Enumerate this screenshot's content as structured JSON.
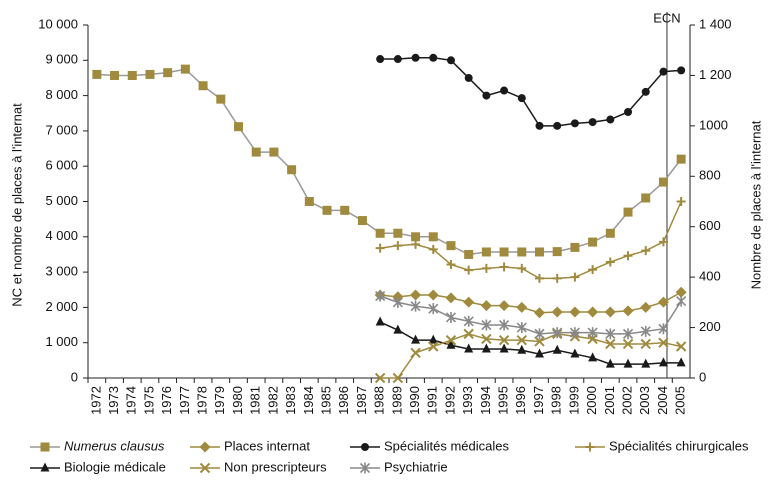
{
  "chart_data": {
    "type": "line",
    "ylabel": "NC et nombre de places à l'internat",
    "y2label": "Nombre de places à l'internat",
    "annotation": "ECN",
    "categories": [
      "1972",
      "1973",
      "1974",
      "1975",
      "1976",
      "1977",
      "1978",
      "1979",
      "1980",
      "1981",
      "1982",
      "1983",
      "1984",
      "1985",
      "1986",
      "1987",
      "1988",
      "1989",
      "1990",
      "1991",
      "1992",
      "1993",
      "1994",
      "1995",
      "1996",
      "1997",
      "1998",
      "1999",
      "2000",
      "2001",
      "2002",
      "2003",
      "2004",
      "2005"
    ],
    "ylim": [
      0,
      10000
    ],
    "yticks": [
      0,
      {
        "value": 1000,
        "label": "1 000"
      },
      {
        "value": 2000,
        "label": "2 000"
      },
      {
        "value": 3000,
        "label": "3 000"
      },
      {
        "value": 4000,
        "label": "4 000"
      },
      {
        "value": 5000,
        "label": "5 000"
      },
      {
        "value": 6000,
        "label": "6 000"
      },
      {
        "value": 7000,
        "label": "7 000"
      },
      {
        "value": 8000,
        "label": "8 000"
      },
      {
        "value": 9000,
        "label": "9 000"
      },
      {
        "value": 10000,
        "label": "10 000"
      }
    ],
    "y2lim": [
      0,
      1400
    ],
    "y2ticks": [
      0,
      200,
      400,
      600,
      800,
      1000,
      {
        "value": 1200,
        "label": "1 200"
      },
      {
        "value": 1400,
        "label": "1 400"
      }
    ],
    "series": [
      {
        "name": "Numerus clausus",
        "color": "#9f8a3e",
        "marker": "square",
        "axis": "y",
        "values": [
          8600,
          8570,
          8570,
          8600,
          8650,
          8750,
          8280,
          7900,
          7120,
          6400,
          6400,
          5900,
          5000,
          4750,
          4750,
          4460,
          4100,
          4100,
          4000,
          4000,
          3750,
          3500,
          3570,
          3570,
          3570,
          3570,
          3580,
          3700,
          3850,
          4100,
          4700,
          5100,
          5550,
          6200
        ]
      },
      {
        "name": "Places internat",
        "color": "#9f8a3e",
        "marker": "diamond",
        "axis": "y",
        "values": [
          null,
          null,
          null,
          null,
          null,
          null,
          null,
          null,
          null,
          null,
          null,
          null,
          null,
          null,
          null,
          null,
          2350,
          2300,
          2350,
          2350,
          2270,
          2150,
          2050,
          2050,
          2000,
          1850,
          1870,
          1870,
          1870,
          1870,
          1900,
          2000,
          2150,
          2430
        ]
      },
      {
        "name": "Spécialités médicales",
        "color": "#1a1a1a",
        "marker": "circle",
        "axis": "y2",
        "values": [
          null,
          null,
          null,
          null,
          null,
          null,
          null,
          null,
          null,
          null,
          null,
          null,
          null,
          null,
          null,
          null,
          1265,
          1265,
          1270,
          1270,
          1260,
          1190,
          1120,
          1140,
          1110,
          1000,
          1000,
          1010,
          1015,
          1025,
          1055,
          1135,
          1215,
          1220
        ]
      },
      {
        "name": "Spécialités chirurgicales",
        "color": "#9f8a3e",
        "marker": "plus",
        "axis": "y2",
        "values": [
          null,
          null,
          null,
          null,
          null,
          null,
          null,
          null,
          null,
          null,
          null,
          null,
          null,
          null,
          null,
          null,
          515,
          525,
          530,
          510,
          450,
          428,
          435,
          440,
          435,
          395,
          395,
          400,
          430,
          460,
          485,
          505,
          540,
          700
        ]
      },
      {
        "name": "Biologie médicale",
        "color": "#1a1a1a",
        "marker": "triangle",
        "axis": "y2",
        "values": [
          null,
          null,
          null,
          null,
          null,
          null,
          null,
          null,
          null,
          null,
          null,
          null,
          null,
          null,
          null,
          null,
          222,
          190,
          150,
          150,
          130,
          115,
          115,
          115,
          110,
          95,
          110,
          95,
          80,
          55,
          55,
          55,
          60,
          60
        ]
      },
      {
        "name": "Non prescripteurs",
        "color": "#9f8a3e",
        "marker": "x",
        "axis": "y2",
        "values": [
          null,
          null,
          null,
          null,
          null,
          null,
          null,
          null,
          null,
          null,
          null,
          null,
          null,
          null,
          null,
          null,
          0,
          0,
          100,
          125,
          150,
          175,
          155,
          150,
          150,
          145,
          175,
          165,
          155,
          135,
          135,
          135,
          140,
          125
        ]
      },
      {
        "name": "Psychiatrie",
        "color": "#888888",
        "marker": "star",
        "axis": "y2",
        "values": [
          null,
          null,
          null,
          null,
          null,
          null,
          null,
          null,
          null,
          null,
          null,
          null,
          null,
          null,
          null,
          null,
          325,
          300,
          285,
          275,
          240,
          225,
          210,
          210,
          200,
          175,
          180,
          180,
          180,
          175,
          175,
          185,
          195,
          305
        ]
      }
    ]
  }
}
